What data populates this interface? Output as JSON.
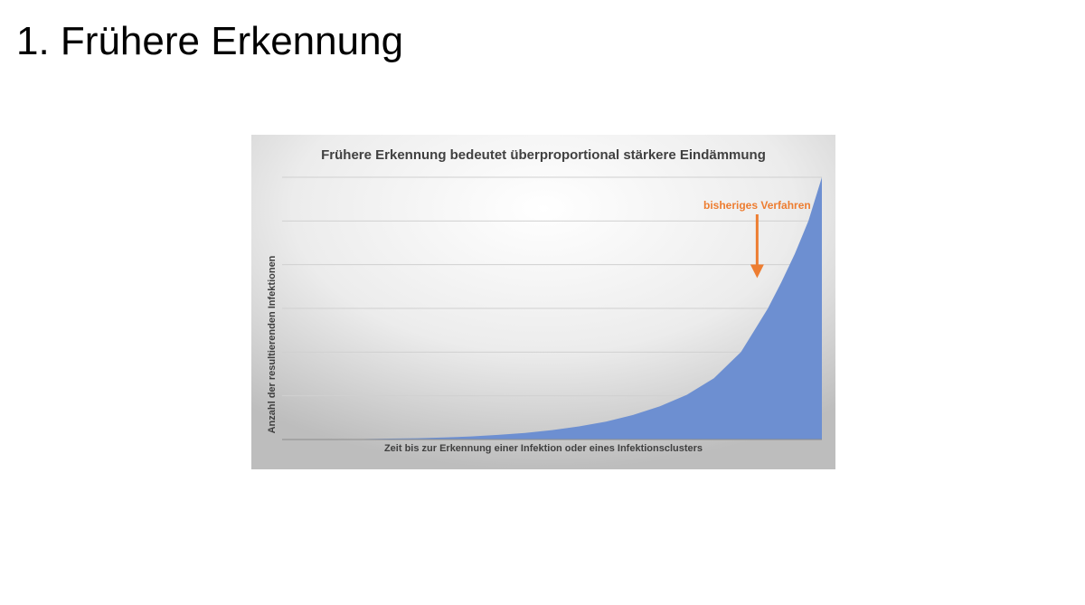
{
  "slide": {
    "title": "1. Frühere Erkennung"
  },
  "chart_data": {
    "type": "area",
    "title": "Frühere Erkennung bedeutet überproportional stärkere Eindämmung",
    "xlabel": "Zeit bis zur Erkennung einer Infektion oder eines Infektionsclusters",
    "ylabel": "Anzahl der resultierenden Infektionen",
    "xlim": [
      0,
      1
    ],
    "ylim": [
      0,
      1.2
    ],
    "grid": true,
    "x": [
      0,
      0.05,
      0.1,
      0.15,
      0.2,
      0.25,
      0.3,
      0.35,
      0.4,
      0.45,
      0.5,
      0.55,
      0.6,
      0.65,
      0.7,
      0.75,
      0.8,
      0.85,
      0.875,
      0.9,
      0.925,
      0.95,
      0.975,
      1
    ],
    "series": [
      {
        "color": "#6d8fd1",
        "values": [
          0,
          0.0005,
          0.001,
          0.002,
          0.004,
          0.006,
          0.009,
          0.014,
          0.021,
          0.03,
          0.043,
          0.06,
          0.082,
          0.112,
          0.152,
          0.205,
          0.28,
          0.4,
          0.5,
          0.6,
          0.72,
          0.85,
          1.0,
          1.2
        ]
      }
    ],
    "annotation": {
      "text": "bisheriges Verfahren",
      "color": "#ed7d31",
      "x": 0.88,
      "y": 0.72
    }
  }
}
